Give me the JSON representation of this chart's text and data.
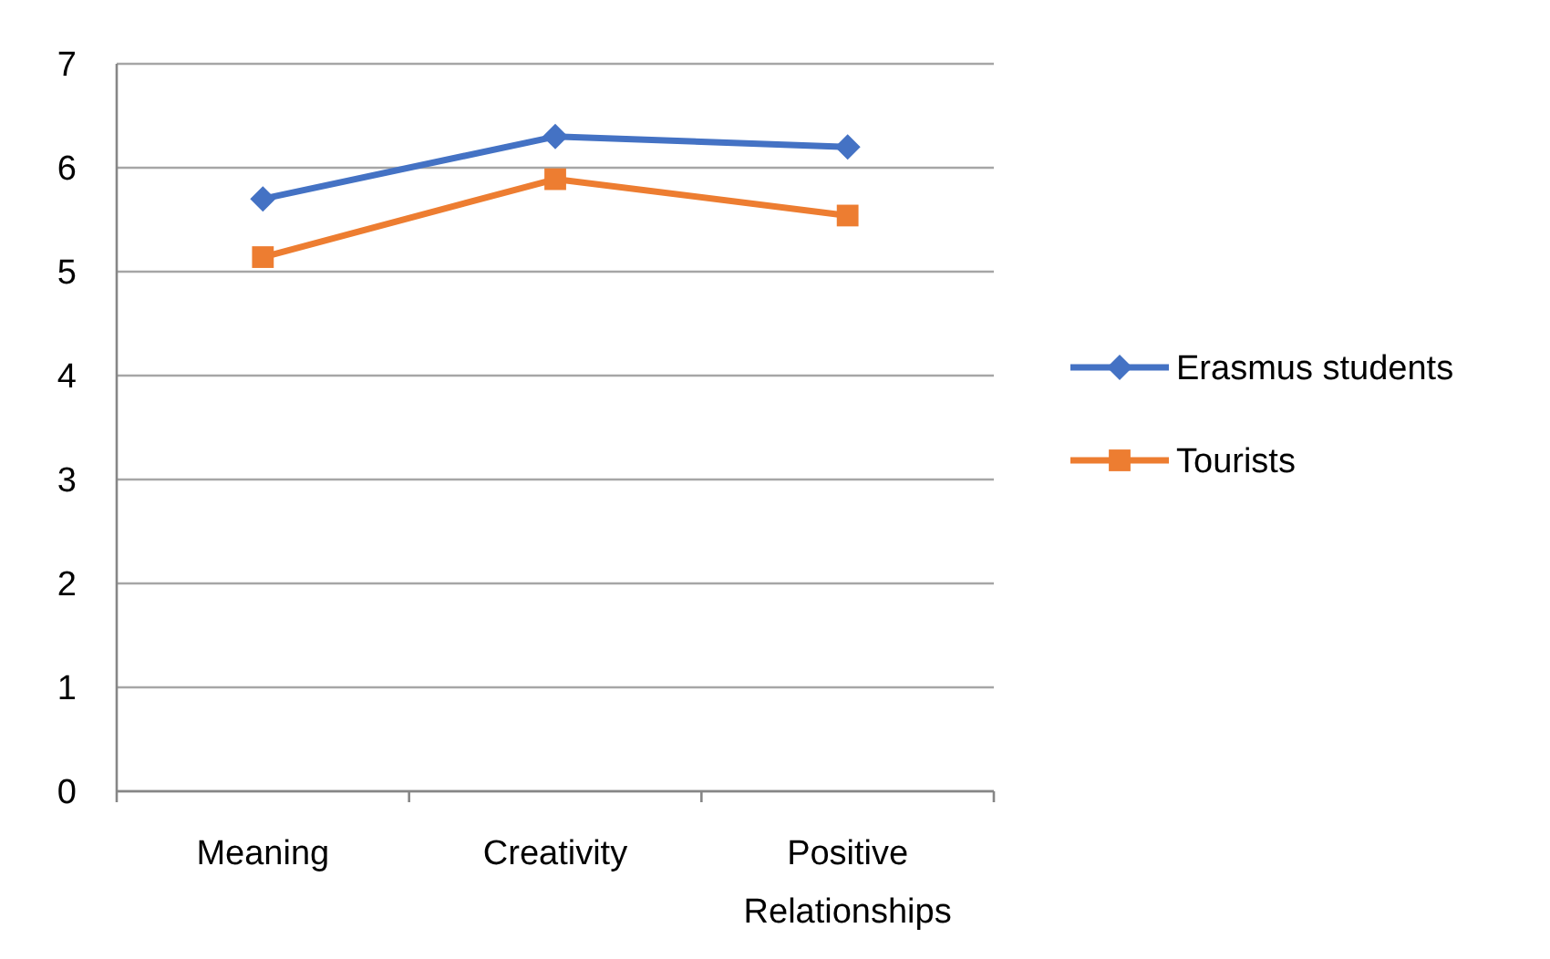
{
  "chart_data": {
    "type": "line",
    "categories": [
      "Meaning",
      "Creativity",
      "Positive Relationships"
    ],
    "series": [
      {
        "name": "Erasmus students",
        "color": "#4472c4",
        "marker": "diamond",
        "values": [
          5.7,
          6.3,
          6.2
        ]
      },
      {
        "name": "Tourists",
        "color": "#ed7d31",
        "marker": "square",
        "values": [
          5.14,
          5.89,
          5.54
        ]
      }
    ],
    "ylim": [
      0,
      7
    ],
    "yticks": [
      0,
      1,
      2,
      3,
      4,
      5,
      6,
      7
    ],
    "grid": "y",
    "legend": "right"
  }
}
